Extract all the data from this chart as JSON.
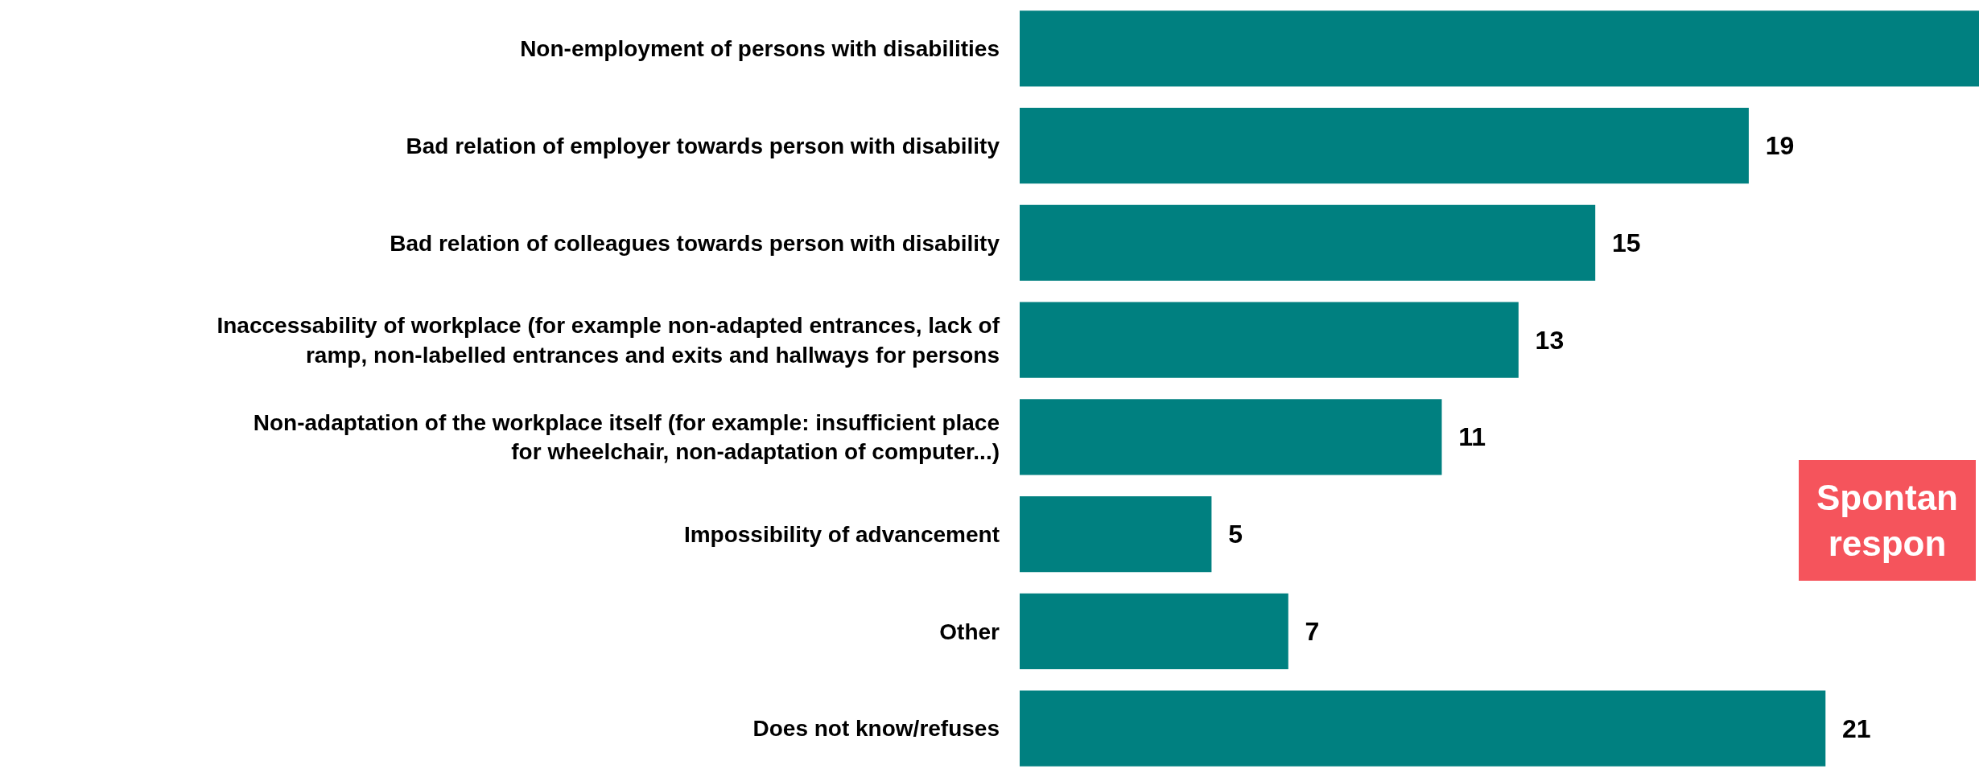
{
  "chart_data": {
    "type": "bar",
    "orientation": "horizontal",
    "categories": [
      "Non-employment of persons with disabilities",
      "Bad relation of employer towards person with disability",
      "Bad relation of colleagues towards person with disability",
      "Inaccessability of workplace (for example non-adapted entrances, lack of ramp, non-labelled entrances and exits and hallways for persons",
      "Non-adaptation of the workplace itself (for example: insufficient place for wheelchair, non-adaptation of computer...)",
      "Impossibility of advancement",
      "Other",
      "Does not know/refuses"
    ],
    "values": [
      25,
      19,
      15,
      13,
      11,
      5,
      7,
      21
    ],
    "value_labels": [
      null,
      "19",
      "15",
      "13",
      "11",
      "5",
      "7",
      "21"
    ],
    "color": "#008080",
    "xlim": [
      0,
      25
    ],
    "annotations": [
      "Spontan\nrespon"
    ]
  }
}
